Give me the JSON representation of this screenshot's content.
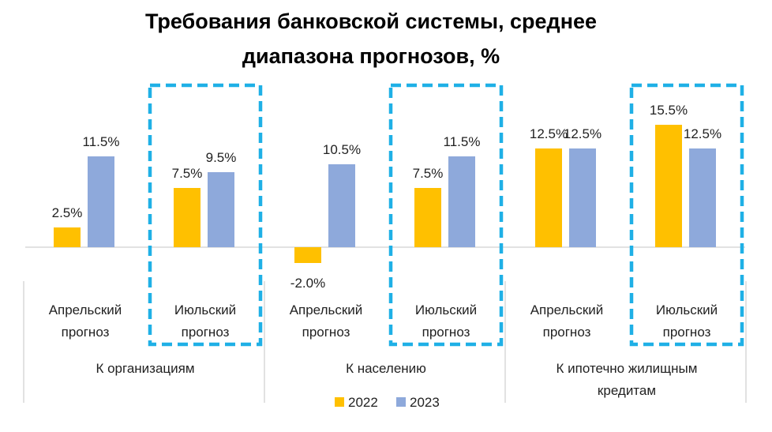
{
  "chart_data": {
    "type": "bar",
    "title_lines": [
      "Требования банковской системы, среднее",
      "диапазона прогнозов, %"
    ],
    "groups": [
      {
        "name": "К организациям",
        "name_lines": [
          "К организациям"
        ],
        "forecasts": [
          {
            "label_lines": [
              "Апрельский",
              "прогноз"
            ],
            "highlight": false,
            "values": [
              2.5,
              11.5
            ],
            "labels": [
              "2.5%",
              "11.5%"
            ]
          },
          {
            "label_lines": [
              "Июльский",
              "прогноз"
            ],
            "highlight": true,
            "values": [
              7.5,
              9.5
            ],
            "labels": [
              "7.5%",
              "9.5%"
            ]
          }
        ]
      },
      {
        "name": "К населению",
        "name_lines": [
          "К населению"
        ],
        "forecasts": [
          {
            "label_lines": [
              "Апрельский",
              "прогноз"
            ],
            "highlight": false,
            "values": [
              -2.0,
              10.5
            ],
            "labels": [
              "-2.0%",
              "10.5%"
            ]
          },
          {
            "label_lines": [
              "Июльский",
              "прогноз"
            ],
            "highlight": true,
            "values": [
              7.5,
              11.5
            ],
            "labels": [
              "7.5%",
              "11.5%"
            ]
          }
        ]
      },
      {
        "name": "К ипотечно жилищным кредитам",
        "name_lines": [
          "К ипотечно жилищным",
          "кредитам"
        ],
        "forecasts": [
          {
            "label_lines": [
              "Апрельский",
              "прогноз"
            ],
            "highlight": false,
            "values": [
              12.5,
              12.5
            ],
            "labels": [
              "12.5%",
              "12.5%"
            ]
          },
          {
            "label_lines": [
              "Июльский",
              "прогноз"
            ],
            "highlight": true,
            "values": [
              15.5,
              12.5
            ],
            "labels": [
              "15.5%",
              "12.5%"
            ]
          }
        ]
      }
    ],
    "series": [
      {
        "name": "2022",
        "color": "#FFC000"
      },
      {
        "name": "2023",
        "color": "#8EA9DB"
      }
    ],
    "highlight_color": "#1FB0E6",
    "ylim": [
      -2.0,
      15.5
    ],
    "grid": false,
    "legend_position": "bottom-center"
  }
}
